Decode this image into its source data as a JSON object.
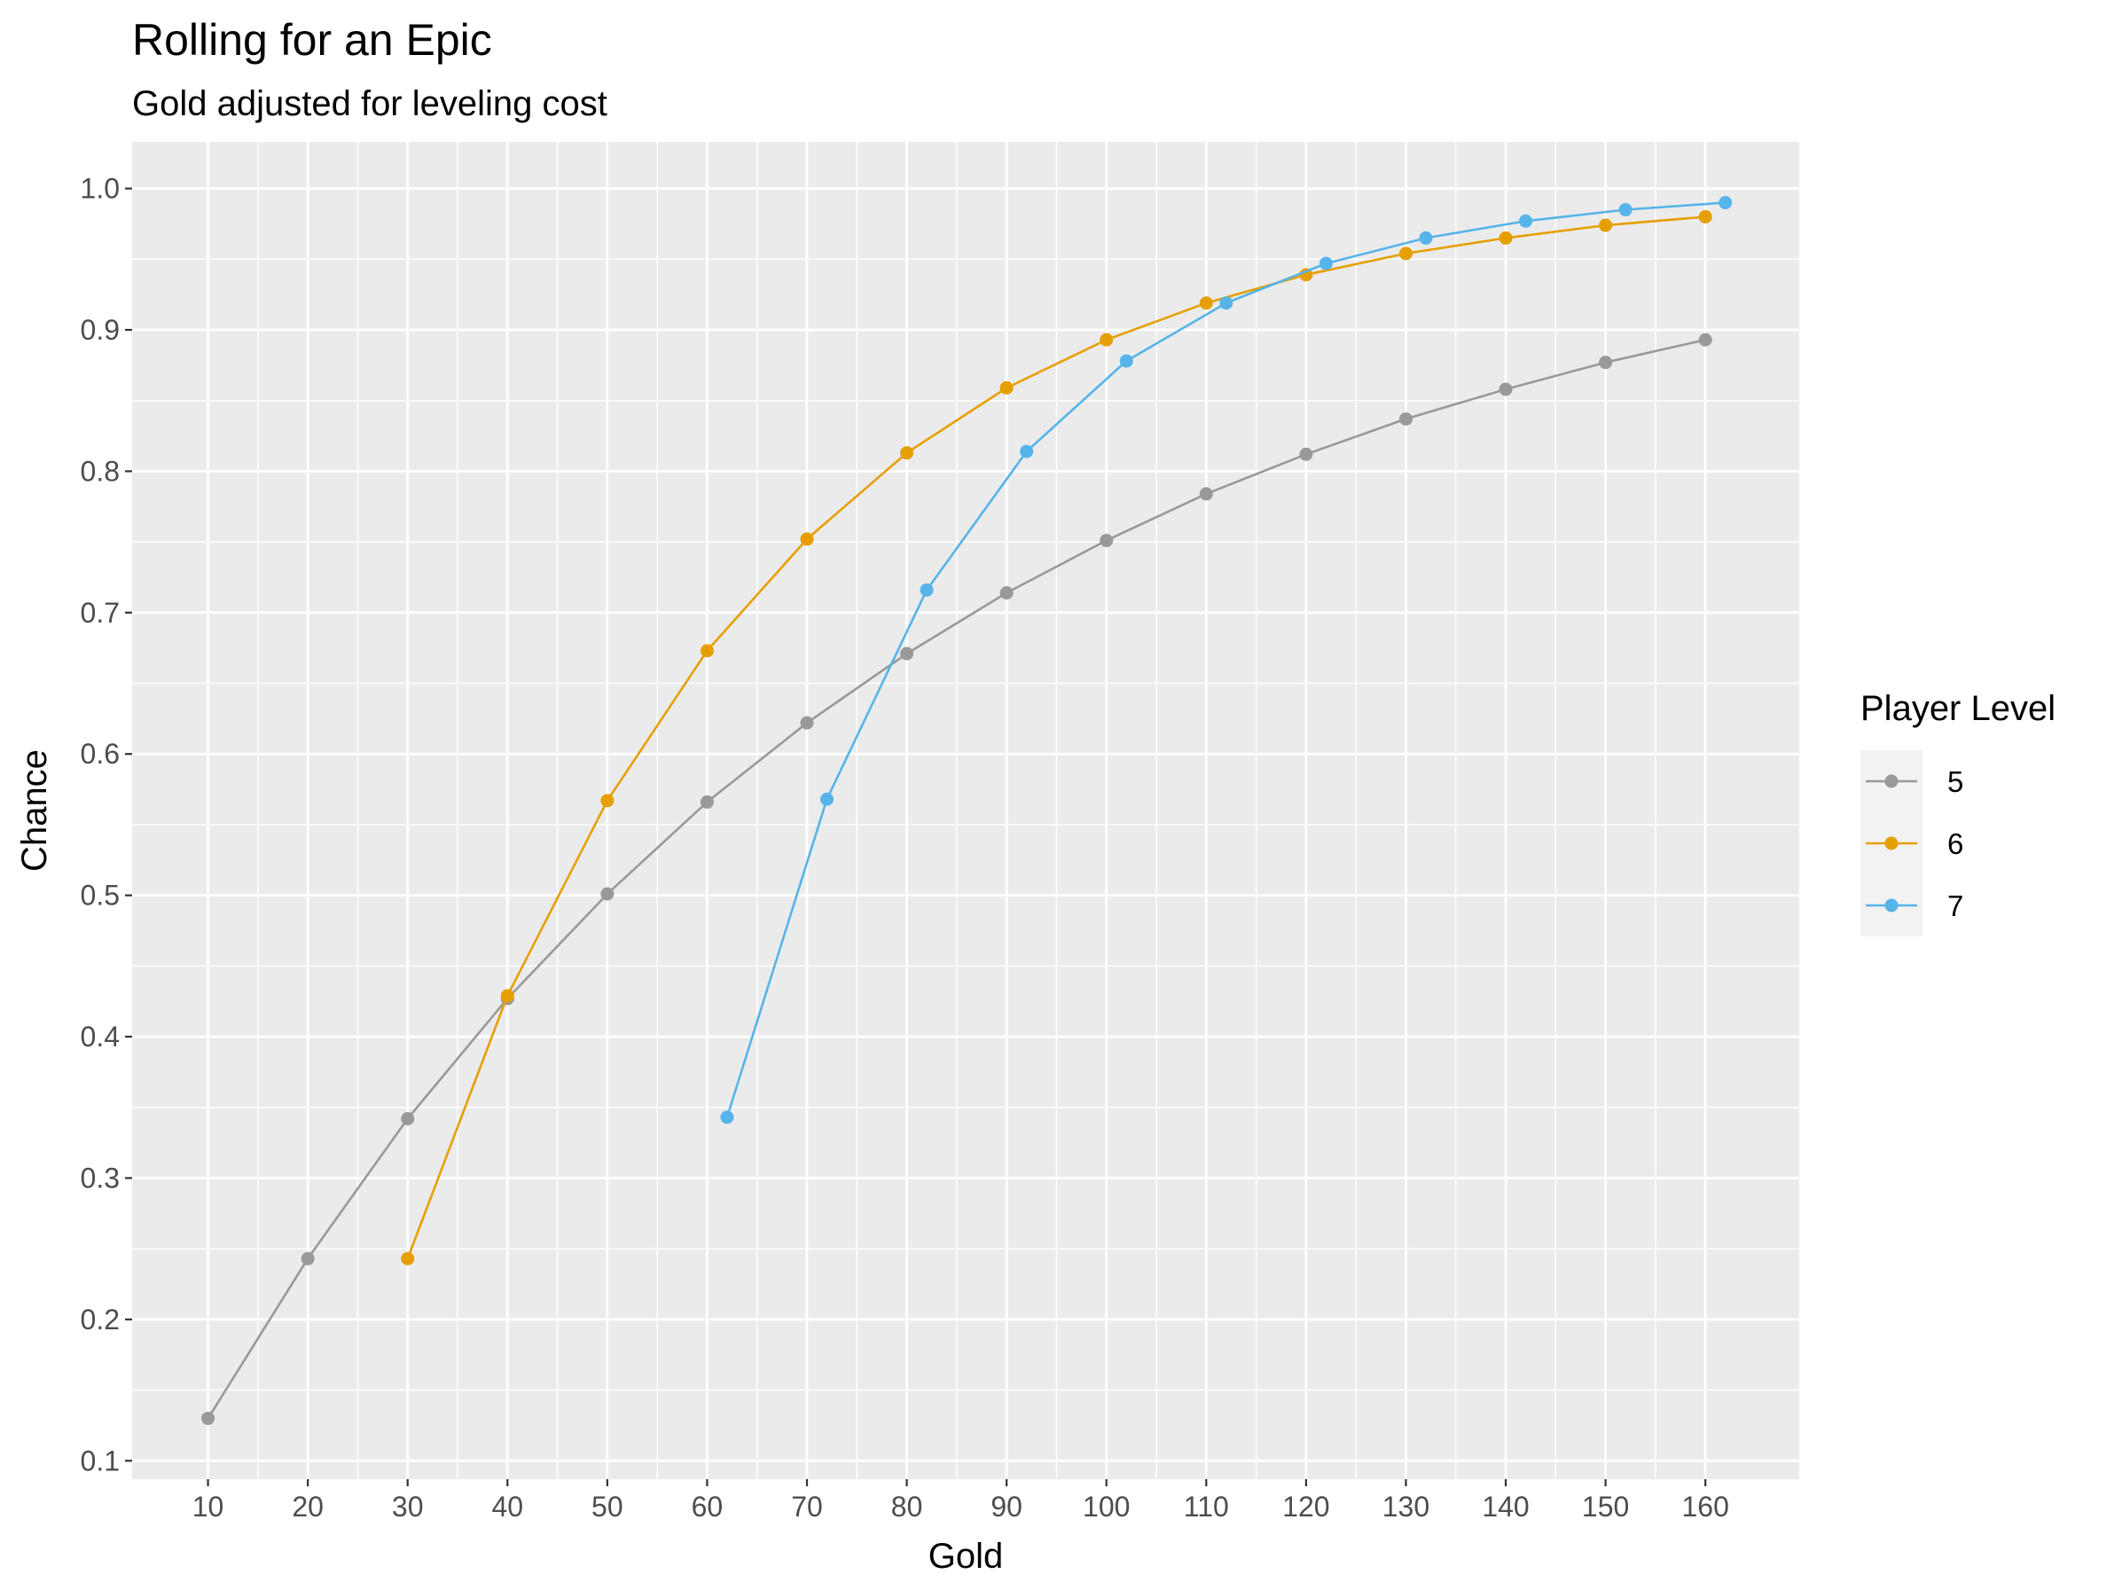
{
  "chart_data": {
    "type": "line",
    "title": "Rolling for an Epic",
    "subtitle": "Gold adjusted for leveling cost",
    "xlabel": "Gold",
    "ylabel": "Chance",
    "xlim": [
      2.4,
      169.4
    ],
    "ylim": [
      0.087,
      1.033
    ],
    "x_ticks": [
      10,
      20,
      30,
      40,
      50,
      60,
      70,
      80,
      90,
      100,
      110,
      120,
      130,
      140,
      150,
      160
    ],
    "y_ticks": [
      0.1,
      0.2,
      0.3,
      0.4,
      0.5,
      0.6,
      0.7,
      0.8,
      0.9,
      1.0
    ],
    "y_tick_labels": [
      "0.1",
      "0.2",
      "0.3",
      "0.4",
      "0.5",
      "0.6",
      "0.7",
      "0.8",
      "0.9",
      "1.0"
    ],
    "grid": true,
    "background": "#ebebeb",
    "legend": {
      "title": "Player Level",
      "placement": "right"
    },
    "series": [
      {
        "name": "5",
        "color": "#999999",
        "x": [
          10,
          20,
          30,
          40,
          50,
          60,
          70,
          80,
          90,
          100,
          110,
          120,
          130,
          140,
          150,
          160
        ],
        "y": [
          0.13,
          0.243,
          0.342,
          0.427,
          0.501,
          0.566,
          0.622,
          0.671,
          0.714,
          0.751,
          0.784,
          0.812,
          0.837,
          0.858,
          0.877,
          0.893
        ]
      },
      {
        "name": "6",
        "color": "#E69F00",
        "x": [
          30,
          40,
          50,
          60,
          70,
          80,
          90,
          100,
          110,
          120,
          130,
          140,
          150,
          160
        ],
        "y": [
          0.243,
          0.429,
          0.567,
          0.673,
          0.752,
          0.813,
          0.859,
          0.893,
          0.919,
          0.939,
          0.954,
          0.965,
          0.974,
          0.98
        ]
      },
      {
        "name": "7",
        "color": "#56B4E9",
        "x": [
          62,
          72,
          82,
          92,
          102,
          112,
          122,
          132,
          142,
          152,
          162
        ],
        "y": [
          0.343,
          0.568,
          0.716,
          0.814,
          0.878,
          0.919,
          0.947,
          0.965,
          0.977,
          0.985,
          0.99
        ]
      }
    ]
  }
}
